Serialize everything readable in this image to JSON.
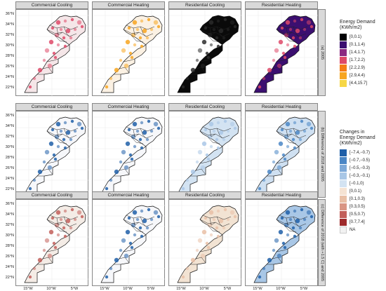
{
  "chart_data": {
    "type": "map-facet",
    "columns": [
      "Commercial Cooling",
      "Commercial Heating",
      "Residential Cooling",
      "Residential Heating"
    ],
    "rows": [
      "(a) 2005",
      "(b) Difference of 2018 and 2005",
      "(c) Difference of 2018 (with +1.5 C) and 2005"
    ],
    "y_ticks": [
      "36°N",
      "34°N",
      "32°N",
      "30°N",
      "28°N",
      "26°N",
      "24°N",
      "22°N"
    ],
    "x_ticks": [
      "15°W",
      "10°W",
      "5°W"
    ],
    "legend_demand": {
      "title": "Energy Demand (KWh/m2)",
      "title_lines": [
        "Energy Demand",
        "(KWh/m2)"
      ],
      "items": [
        {
          "label": "[0,0.1)",
          "color": "#000004"
        },
        {
          "label": "[0.1,1.4)",
          "color": "#3b0f70"
        },
        {
          "label": "[1.4,1.7)",
          "color": "#8c2981"
        },
        {
          "label": "[1.7,2.2)",
          "color": "#de4968"
        },
        {
          "label": "[2.2,2.9)",
          "color": "#f57d15"
        },
        {
          "label": "[2.9,4.4)",
          "color": "#f7a51f"
        },
        {
          "label": "[4.4,15.7]",
          "color": "#f6d746"
        }
      ]
    },
    "legend_change": {
      "title": "Changes in Energy Demand (KWh/m2)",
      "title_lines": [
        "Changes in",
        "Energy Demand",
        "(KWh/m2)"
      ],
      "items": [
        {
          "label": "[−7.4,−0.7)",
          "color": "#1f5fa8"
        },
        {
          "label": "[−0.7,−0.5)",
          "color": "#4a86c5"
        },
        {
          "label": "[−0.5,−0.3)",
          "color": "#7ea9d8"
        },
        {
          "label": "[−0.3,−0.1)",
          "color": "#a9c7e6"
        },
        {
          "label": "[−0.1,0)",
          "color": "#d3e3f2"
        },
        {
          "label": "[0,0.1)",
          "color": "#f5e3d3"
        },
        {
          "label": "[0.1,0.3)",
          "color": "#e9c0a6"
        },
        {
          "label": "[0.3,0.5)",
          "color": "#d99583"
        },
        {
          "label": "[0.5,0.7)",
          "color": "#c25f5a"
        },
        {
          "label": "[0.7,7.4]",
          "color": "#9e2a2b"
        },
        {
          "label": "NA",
          "color": "#f2f2f2"
        }
      ]
    },
    "map_fills": [
      [
        "#f5e6e8",
        "#fbf1e3",
        "#0a0a0a",
        "#3b0f70"
      ],
      [
        "#f6f7fa",
        "#f6f7fa",
        "#d3e3f2",
        "#cfe0f1"
      ],
      [
        "#f4ece6",
        "#f6f7fa",
        "#f2e3d3",
        "#a9c7e6"
      ]
    ],
    "map_accents": [
      [
        "#de4968",
        "#f7a51f",
        "#2a2a2a",
        "#de4968"
      ],
      [
        "#1f5fa8",
        "#1f5fa8",
        "#a9c7e6",
        "#4a86c5"
      ],
      [
        "#c25f5a",
        "#1f5fa8",
        "#e9c0a6",
        "#1f5fa8"
      ]
    ],
    "grid": true
  }
}
